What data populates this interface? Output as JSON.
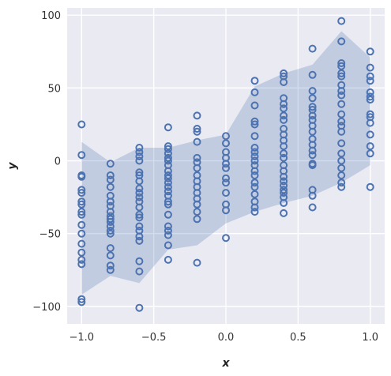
{
  "chart_data": {
    "type": "scatter",
    "xlabel": "x",
    "ylabel": "y",
    "xlim": [
      -1.1,
      1.1
    ],
    "ylim": [
      -112,
      105
    ],
    "xticks": [
      -1.0,
      -0.5,
      0.0,
      0.5,
      1.0
    ],
    "xtick_labels": [
      "−1.0",
      "−0.5",
      "0.0",
      "0.5",
      "1.0"
    ],
    "yticks": [
      -100,
      -50,
      0,
      50,
      100
    ],
    "ytick_labels": [
      "−100",
      "−50",
      "0",
      "50",
      "100"
    ],
    "grid": true,
    "colors": {
      "background": "#EAEAF2",
      "grid": "#FFFFFF",
      "marker": "#4C72B0",
      "band": "#4C72B0"
    },
    "band": {
      "x": [
        -1.0,
        -0.8,
        -0.6,
        -0.4,
        -0.2,
        0.0,
        0.2,
        0.4,
        0.6,
        0.8,
        1.0
      ],
      "lower": [
        -92,
        -79,
        -84,
        -61,
        -58,
        -43,
        -35,
        -29,
        -24,
        -15,
        -3
      ],
      "upper": [
        13,
        -1,
        9,
        9,
        14,
        18,
        51,
        60,
        66,
        89,
        71
      ]
    },
    "points": [
      {
        "x": -1.0,
        "y": [
          25,
          4,
          -10,
          -11,
          -20,
          -22,
          -28,
          -30,
          -35,
          -37,
          -44,
          -50,
          -57,
          -63,
          -68,
          -71,
          -95,
          -97
        ]
      },
      {
        "x": -0.8,
        "y": [
          -2,
          -10,
          -13,
          -18,
          -24,
          -28,
          -31,
          -35,
          -38,
          -40,
          -42,
          -45,
          -48,
          -50,
          -60,
          -65,
          -72,
          -75
        ]
      },
      {
        "x": -0.6,
        "y": [
          9,
          6,
          3,
          0,
          -8,
          -10,
          -14,
          -19,
          -22,
          -25,
          -28,
          -32,
          -37,
          -39,
          -45,
          -48,
          -52,
          -55,
          -69,
          -76,
          -101
        ]
      },
      {
        "x": -0.4,
        "y": [
          23,
          10,
          8,
          5,
          2,
          0,
          -3,
          -7,
          -10,
          -12,
          -15,
          -18,
          -21,
          -24,
          -28,
          -30,
          -37,
          -45,
          -48,
          -51,
          -58,
          -68
        ]
      },
      {
        "x": -0.2,
        "y": [
          31,
          22,
          20,
          13,
          2,
          -1,
          -5,
          -10,
          -14,
          -18,
          -22,
          -26,
          -30,
          -35,
          -40,
          -70
        ]
      },
      {
        "x": 0.0,
        "y": [
          17,
          12,
          6,
          2,
          -2,
          -5,
          -12,
          -15,
          -22,
          -30,
          -34,
          -53
        ]
      },
      {
        "x": 0.2,
        "y": [
          55,
          47,
          38,
          27,
          25,
          17,
          9,
          6,
          3,
          0,
          -3,
          -7,
          -10,
          -15,
          -18,
          -23,
          -28,
          -32,
          -35
        ]
      },
      {
        "x": 0.4,
        "y": [
          60,
          58,
          54,
          43,
          39,
          36,
          31,
          28,
          22,
          18,
          14,
          10,
          5,
          2,
          -3,
          -7,
          -11,
          -14,
          -17,
          -20,
          -22,
          -25,
          -29,
          -36
        ]
      },
      {
        "x": 0.6,
        "y": [
          77,
          59,
          48,
          43,
          37,
          35,
          31,
          28,
          24,
          20,
          15,
          11,
          7,
          4,
          -2,
          -3,
          -20,
          -24,
          -32
        ]
      },
      {
        "x": 0.8,
        "y": [
          96,
          82,
          67,
          65,
          60,
          58,
          52,
          48,
          45,
          39,
          32,
          27,
          24,
          20,
          12,
          5,
          0,
          -5,
          -10,
          -15,
          -18
        ]
      },
      {
        "x": 1.0,
        "y": [
          75,
          64,
          58,
          55,
          47,
          44,
          42,
          32,
          30,
          26,
          18,
          10,
          5,
          -18
        ]
      }
    ]
  }
}
